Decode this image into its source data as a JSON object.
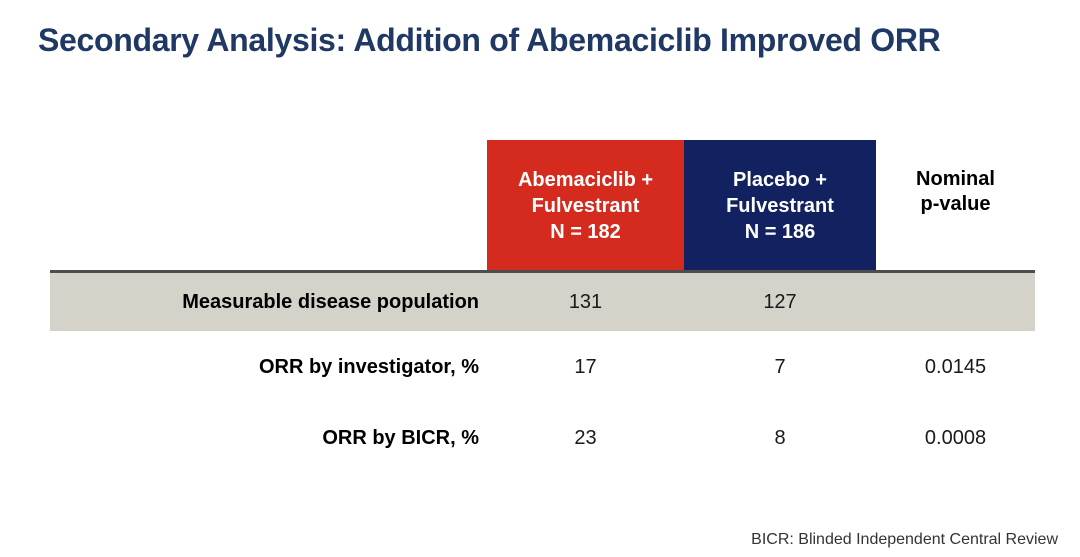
{
  "slide": {
    "title": "Secondary Analysis: Addition of Abemaciclib Improved ORR",
    "footnote": "BICR: Blinded Independent Central Review"
  },
  "table": {
    "arm_columns": [
      {
        "line1": "Abemaciclib +",
        "line2": "Fulvestrant",
        "n": "N = 182"
      },
      {
        "line1": "Placebo +",
        "line2": "Fulvestrant",
        "n": "N = 186"
      }
    ],
    "pvalue_header": {
      "line1": "Nominal",
      "line2": "p-value"
    },
    "rows": [
      {
        "label": "Measurable disease population",
        "abemaciclib": "131",
        "placebo": "127",
        "p_value": ""
      },
      {
        "label": "ORR by investigator, %",
        "abemaciclib": "17",
        "placebo": "7",
        "p_value": "0.0145"
      },
      {
        "label": "ORR by BICR, %",
        "abemaciclib": "23",
        "placebo": "8",
        "p_value": "0.0008"
      }
    ]
  },
  "colors": {
    "title_navy": "#1f3864",
    "arm1_red": "#d52b1e",
    "arm2_navy": "#122260",
    "highlight_row_gray": "#d5d2ca",
    "rule_gray": "#4d4d4d",
    "background": "#ffffff"
  }
}
